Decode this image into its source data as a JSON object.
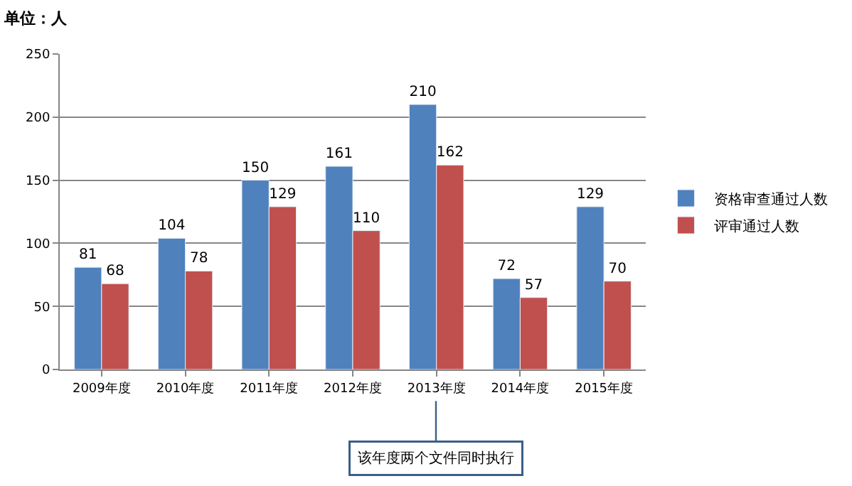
{
  "chart_data": {
    "type": "bar",
    "title": "单位：人",
    "categories": [
      "2009年度",
      "2010年度",
      "2011年度",
      "2012年度",
      "2013年度",
      "2014年度",
      "2015年度"
    ],
    "series": [
      {
        "name": "资格审查通过人数",
        "color": "#4f81bd",
        "values": [
          81,
          104,
          150,
          161,
          210,
          72,
          129
        ]
      },
      {
        "name": "评审通过人数",
        "color": "#c0504d",
        "values": [
          68,
          78,
          129,
          110,
          162,
          57,
          70
        ]
      }
    ],
    "ylim": [
      0,
      250
    ],
    "yticks": [
      0,
      50,
      100,
      150,
      200,
      250
    ],
    "grid": "y",
    "legend": "right",
    "data_labels": true,
    "annotations": [
      "该年度两个文件同时执行"
    ]
  }
}
